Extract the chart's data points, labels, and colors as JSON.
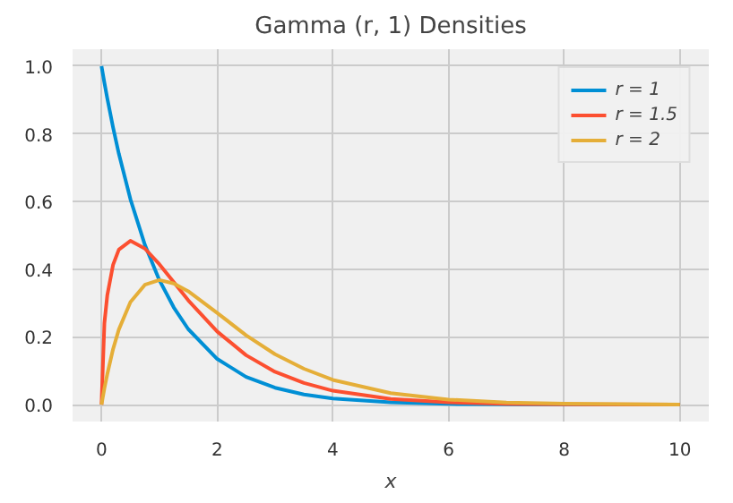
{
  "chart_data": {
    "type": "line",
    "title": "Gamma (r, 1) Densities",
    "xlabel": "x",
    "x": [
      0,
      0.05,
      0.1,
      0.2,
      0.3,
      0.5,
      0.75,
      1,
      1.25,
      1.5,
      2,
      2.5,
      3,
      3.5,
      4,
      5,
      6,
      7,
      8,
      10
    ],
    "series": [
      {
        "name": "r = 1",
        "color": "#008fd5",
        "values": [
          1,
          0.951,
          0.905,
          0.819,
          0.741,
          0.607,
          0.472,
          0.368,
          0.287,
          0.223,
          0.135,
          0.082,
          0.05,
          0.03,
          0.018,
          0.007,
          0.002,
          0.001,
          0.0,
          0.0
        ]
      },
      {
        "name": "r = 1.5",
        "color": "#fc4f30",
        "values": [
          0,
          0.24,
          0.323,
          0.413,
          0.458,
          0.484,
          0.461,
          0.415,
          0.362,
          0.308,
          0.216,
          0.146,
          0.097,
          0.064,
          0.041,
          0.017,
          0.007,
          0.002,
          0.001,
          0.0
        ]
      },
      {
        "name": "r = 2",
        "color": "#e5ae38",
        "values": [
          0,
          0.048,
          0.09,
          0.164,
          0.222,
          0.303,
          0.354,
          0.368,
          0.358,
          0.335,
          0.271,
          0.205,
          0.149,
          0.106,
          0.073,
          0.034,
          0.015,
          0.006,
          0.003,
          0.0
        ]
      }
    ],
    "xlim": [
      -0.5,
      10.5
    ],
    "ylim": [
      -0.05,
      1.05
    ],
    "xticks": [
      0,
      2,
      4,
      6,
      8,
      10
    ],
    "yticks": [
      {
        "value": 0,
        "label": "0.0"
      },
      {
        "value": 0.2,
        "label": "0.2"
      },
      {
        "value": 0.4,
        "label": "0.4"
      },
      {
        "value": 0.6,
        "label": "0.6"
      },
      {
        "value": 0.8,
        "label": "0.8"
      },
      {
        "value": 1,
        "label": "1.0"
      }
    ],
    "grid": true,
    "legend": "top right",
    "line_style": "solid",
    "marker": "none"
  }
}
